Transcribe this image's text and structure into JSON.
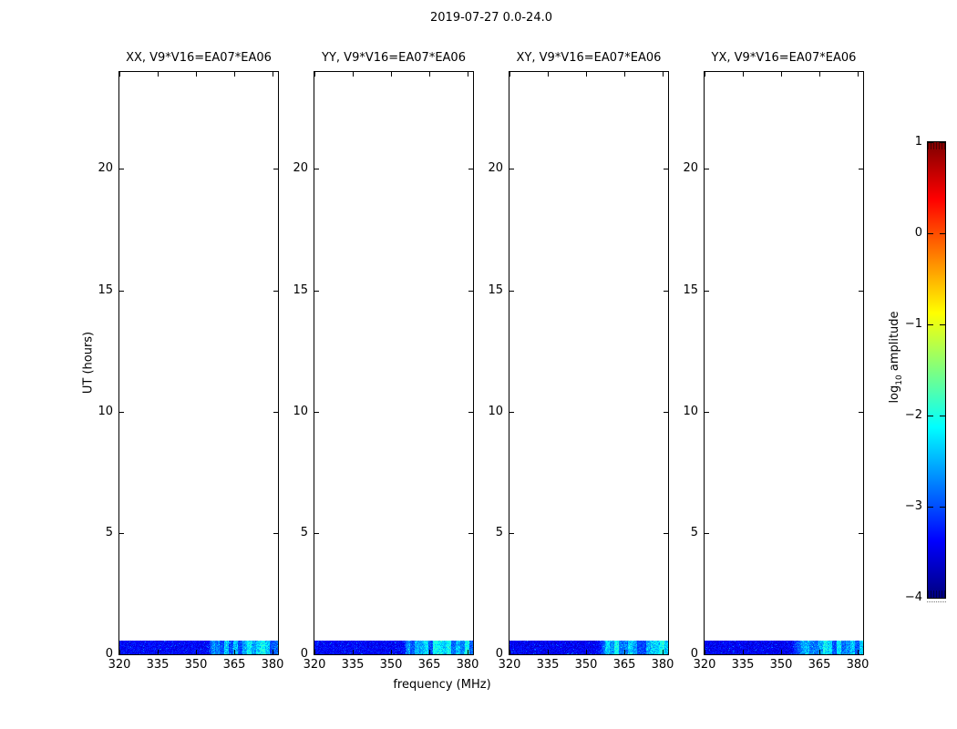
{
  "chart_data": {
    "type": "heatmap",
    "suptitle": "2019-07-27 0.0-24.0",
    "xlabel": "frequency (MHz)",
    "ylabel": "UT (hours)",
    "x_ticks": [
      320,
      335,
      350,
      365,
      380
    ],
    "x_range": [
      320,
      382
    ],
    "y_ticks": [
      0,
      5,
      10,
      15,
      20
    ],
    "y_range": [
      0,
      24
    ],
    "grid": false,
    "note": "Four polarization spectrogram panels; only the first ~0.55 h of each 24 h panel contains data (dark blue noise band at 0 UT with brighter cyan RFI patches above ~356 MHz); the remainder of each panel is empty white.",
    "panels": [
      {
        "id": "XX",
        "title": "XX, V9*V16=EA07*EA06",
        "seed": 101,
        "data_time_extent_hours": [
          0,
          0.55
        ],
        "baseline_log10_amp": -3.4,
        "rfi_enhancement": {
          "freq_range_mhz": [
            356,
            382
          ],
          "log10_amp": -2.3
        }
      },
      {
        "id": "YY",
        "title": "YY, V9*V16=EA07*EA06",
        "seed": 202,
        "data_time_extent_hours": [
          0,
          0.55
        ],
        "baseline_log10_amp": -3.4,
        "rfi_enhancement": {
          "freq_range_mhz": [
            356,
            382
          ],
          "log10_amp": -2.3
        }
      },
      {
        "id": "XY",
        "title": "XY, V9*V16=EA07*EA06",
        "seed": 303,
        "data_time_extent_hours": [
          0,
          0.55
        ],
        "baseline_log10_amp": -3.45,
        "rfi_enhancement": {
          "freq_range_mhz": [
            356,
            382
          ],
          "log10_amp": -2.4
        }
      },
      {
        "id": "YX",
        "title": "YX, V9*V16=EA07*EA06",
        "seed": 404,
        "data_time_extent_hours": [
          0,
          0.55
        ],
        "baseline_log10_amp": -3.45,
        "rfi_enhancement": {
          "freq_range_mhz": [
            356,
            382
          ],
          "log10_amp": -2.4
        }
      }
    ],
    "colorbar": {
      "label_log": "log",
      "label_sub": "10",
      "label_amp": " amplitude",
      "ticks": [
        "1",
        "0",
        "−1",
        "−2",
        "−3",
        "−4"
      ],
      "tick_values": [
        1,
        0,
        -1,
        -2,
        -3,
        -4
      ],
      "range": [
        -4,
        1
      ],
      "colormap": "jet",
      "colormap_stops": [
        "#00007f",
        "#0000ff",
        "#00ffff",
        "#ffff00",
        "#ff0000",
        "#7f0000"
      ]
    }
  }
}
